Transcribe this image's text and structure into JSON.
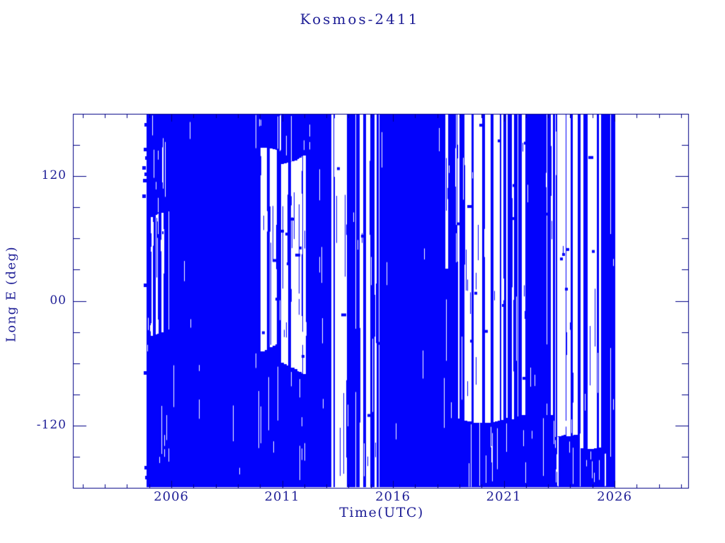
{
  "chart_data": {
    "type": "scatter",
    "title": "Kosmos-2411",
    "xlabel": "Time(UTC)",
    "ylabel": "Long E (deg)",
    "series_color": "#0202fc",
    "axis_color": "#000085",
    "text_color": "#1e1e96",
    "marker": "square",
    "grid": false,
    "legend": null,
    "x_range": [
      2001.56,
      2029.32
    ],
    "y_range": [
      -180,
      180
    ],
    "x_major_ticks": [
      2006,
      2011,
      2016,
      2021,
      2026
    ],
    "x_major_labels": [
      "2006",
      "2011",
      "2016",
      "2021",
      "2026"
    ],
    "x_minor_step": 1,
    "y_major_ticks": [
      120,
      0,
      -120
    ],
    "y_major_labels": [
      "120",
      "00",
      "-120"
    ],
    "y_minor_step": 30,
    "data_start_year": 2004.88,
    "data_end_year": 2026.02,
    "start_markers_deg": [
      170,
      146,
      138,
      128,
      122,
      116,
      101,
      15,
      -69,
      -160,
      -170
    ],
    "coverage": [
      {
        "from": 2004.88,
        "to": 2005.05,
        "fill": 0.95,
        "window": null
      },
      {
        "from": 2005.05,
        "to": 2006.1,
        "fill": 0.52,
        "window": [
          -40,
          95
        ]
      },
      {
        "from": 2006.1,
        "to": 2009.7,
        "fill": 0.985,
        "window": null
      },
      {
        "from": 2009.7,
        "to": 2010.95,
        "fill": 0.38,
        "window": [
          -50,
          150
        ]
      },
      {
        "from": 2010.95,
        "to": 2012.25,
        "fill": 0.56,
        "window": [
          -75,
          160
        ]
      },
      {
        "from": 2012.25,
        "to": 2012.95,
        "fill": 0.96,
        "window": null
      },
      {
        "from": 2012.95,
        "to": 2014.25,
        "fill": 0.62,
        "window": [
          -180,
          180
        ]
      },
      {
        "from": 2014.25,
        "to": 2015.35,
        "fill": 0.46,
        "window": [
          -180,
          180
        ]
      },
      {
        "from": 2015.35,
        "to": 2015.95,
        "fill": 0.68,
        "window": [
          -180,
          180
        ]
      },
      {
        "from": 2015.95,
        "to": 2018.35,
        "fill": 0.98,
        "window": null
      },
      {
        "from": 2018.35,
        "to": 2018.95,
        "fill": 0.6,
        "window": [
          15,
          180
        ]
      },
      {
        "from": 2018.95,
        "to": 2021.35,
        "fill": 0.55,
        "window": [
          -125,
          180
        ]
      },
      {
        "from": 2021.35,
        "to": 2023.3,
        "fill": 0.7,
        "window": [
          -140,
          180
        ]
      },
      {
        "from": 2023.3,
        "to": 2023.8,
        "fill": 0.55,
        "window": [
          -140,
          180
        ]
      },
      {
        "from": 2023.8,
        "to": 2024.45,
        "fill": 0.72,
        "window": [
          -140,
          180
        ]
      },
      {
        "from": 2024.45,
        "to": 2025.4,
        "fill": 0.58,
        "window": [
          -150,
          180
        ]
      },
      {
        "from": 2025.4,
        "to": 2025.92,
        "fill": 0.82,
        "window": [
          -170,
          180
        ]
      },
      {
        "from": 2025.92,
        "to": 2026.02,
        "fill": 0.97,
        "window": null
      }
    ],
    "description": "Sub-satellite east longitude of Kosmos-2411 versus time; rapidly drifting longitude wraps between -180 and 180 deg producing dense vertical blue striping from late 2004 through early 2026, with sparser striped windows around 2005-2006, 2010-2012, 2013-2016, 2019-2021 and 2022-2025."
  }
}
